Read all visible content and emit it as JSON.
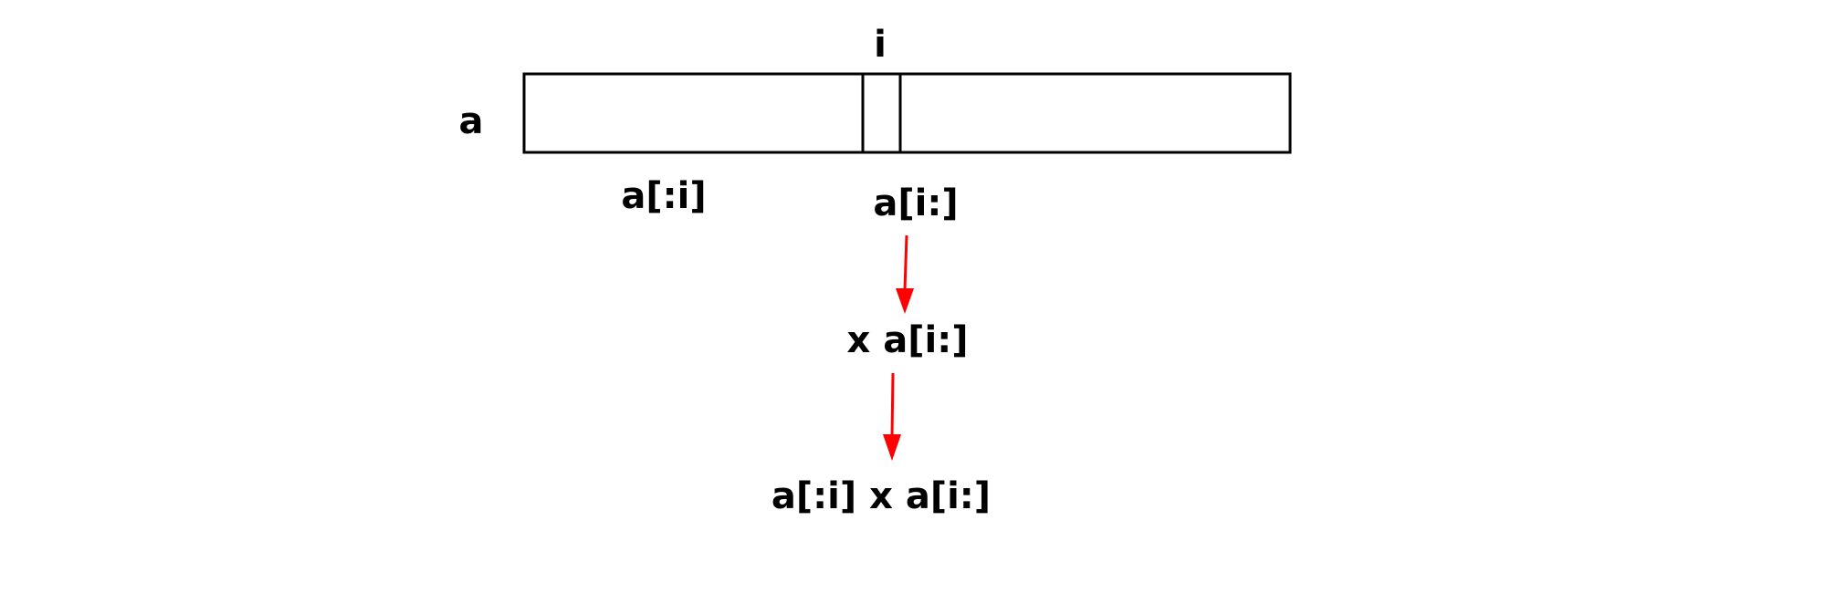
{
  "array": {
    "name": "a",
    "index_label": "i",
    "left_slice": "a[:i]",
    "right_slice": "a[i:]"
  },
  "steps": [
    "x a[i:]",
    "a[:i] x a[i:]"
  ],
  "colors": {
    "arrow": "#ff0000",
    "stroke": "#000000"
  }
}
